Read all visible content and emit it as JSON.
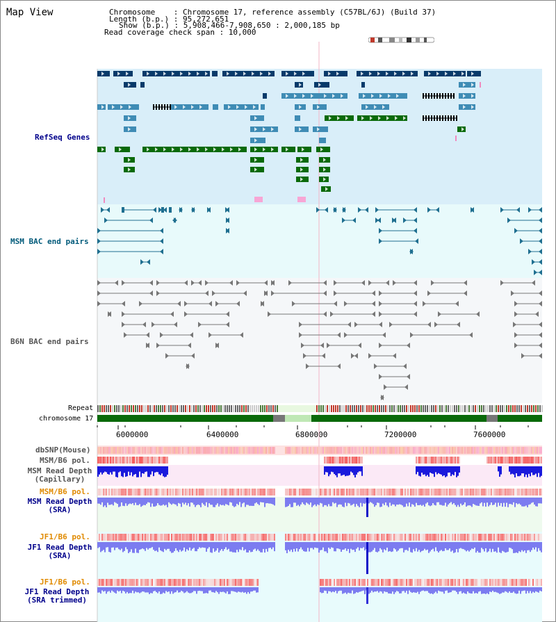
{
  "title": "Map View",
  "info": {
    "chromosome_line": "Chromosome    : Chromosome 17, reference assembly (C57BL/6J) (Build 37)",
    "length_line": "Length (b.p.) : 95,272,651",
    "show_line": "Show (b.p.) : 5,908,466-7,908,650 : 2,000,185 bp",
    "coverage_line": "Read coverage check span : 10,000"
  },
  "tracks": {
    "refseq": "RefSeq Genes",
    "msm_bac": "MSM BAC end pairs",
    "b6n_bac": "B6N BAC end pairs",
    "repeat": "Repeat",
    "chromosome": "chromosome 17",
    "dbsnp": "dbSNP(Mouse)",
    "msm_pol1": "MSM/B6 pol.",
    "msm_depth_cap_1": "MSM Read Depth",
    "msm_depth_cap_2": "(Capillary)",
    "msm_pol2": "MSM/B6 pol.",
    "msm_depth_sra_1": "MSM Read Depth",
    "msm_depth_sra_2": "(SRA)",
    "jf1_pol1": "JF1/B6 pol.",
    "jf1_depth_sra_1": "JF1 Read Depth",
    "jf1_depth_sra_2": "(SRA)",
    "jf1_pol2": "JF1/B6 pol.",
    "jf1_depth_trim_1": "JF1 Read Depth",
    "jf1_depth_trim_2": "(SRA trimmed)"
  },
  "ruler": {
    "ticks": [
      "6000000",
      "6400000",
      "6800000",
      "7200000",
      "7600000"
    ]
  },
  "colors": {
    "refseq_bg": "#d9eef9",
    "msm_bac_bg": "#e8fafb",
    "b6n_bg": "#f4f6f8",
    "gene_dark": "#083a6a",
    "gene_mid": "#3f8cb5",
    "gene_green": "#0a6a0a",
    "chromosome_green": "#0a6a0a",
    "label_blue": "#00008b",
    "label_teal": "#005a7a",
    "label_orange": "#e08a00",
    "depth_blue": "#1a1adc",
    "depth_light": "#7c7cf0"
  }
}
